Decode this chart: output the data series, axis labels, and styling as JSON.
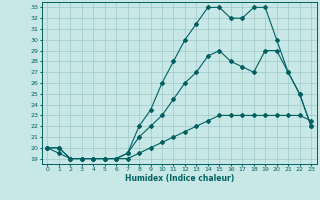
{
  "xlabel": "Humidex (Indice chaleur)",
  "bg_color": "#c8e8e8",
  "grid_color": "#a0c8c8",
  "line_color": "#006060",
  "xlim": [
    -0.5,
    23.5
  ],
  "ylim": [
    18.5,
    33.5
  ],
  "xticks": [
    0,
    1,
    2,
    3,
    4,
    5,
    6,
    7,
    8,
    9,
    10,
    11,
    12,
    13,
    14,
    15,
    16,
    17,
    18,
    19,
    20,
    21,
    22,
    23
  ],
  "yticks": [
    19,
    20,
    21,
    22,
    23,
    24,
    25,
    26,
    27,
    28,
    29,
    30,
    31,
    32,
    33
  ],
  "line1_x": [
    0,
    1,
    2,
    3,
    4,
    5,
    6,
    7,
    8,
    9,
    10,
    11,
    12,
    13,
    14,
    15,
    16,
    17,
    18,
    19,
    20,
    21,
    22,
    23
  ],
  "line1_y": [
    20,
    19.5,
    19,
    19,
    19,
    19,
    19,
    19,
    19.5,
    20,
    20.5,
    21,
    21.5,
    22,
    22.5,
    23,
    23,
    23,
    23,
    23,
    23,
    23,
    23,
    22.5
  ],
  "line2_x": [
    0,
    1,
    2,
    3,
    4,
    5,
    6,
    7,
    8,
    9,
    10,
    11,
    12,
    13,
    14,
    15,
    16,
    17,
    18,
    19,
    20,
    21,
    22,
    23
  ],
  "line2_y": [
    20,
    20,
    19,
    19,
    19,
    19,
    19,
    19.5,
    21,
    22,
    23,
    24.5,
    26,
    27,
    28.5,
    29,
    28,
    27.5,
    27,
    29,
    29,
    27,
    25,
    22
  ],
  "line3_x": [
    0,
    1,
    2,
    3,
    4,
    5,
    6,
    7,
    8,
    9,
    10,
    11,
    12,
    13,
    14,
    15,
    16,
    17,
    18,
    19,
    20,
    21,
    22,
    23
  ],
  "line3_y": [
    20,
    20,
    19,
    19,
    19,
    19,
    19,
    19.5,
    22,
    23.5,
    26,
    28,
    30,
    31.5,
    33,
    33,
    32,
    32,
    33,
    33,
    30,
    27,
    25,
    22
  ]
}
